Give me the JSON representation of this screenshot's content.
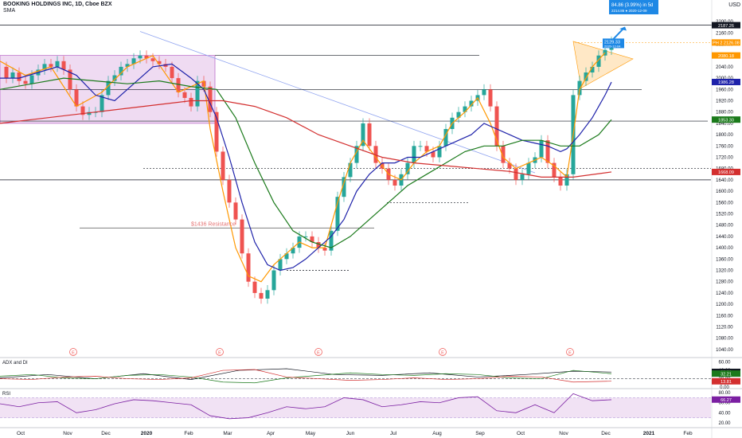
{
  "header": {
    "title": "BOOKING HOLDINGS INC, 1D, Cboe BZX",
    "indicator": "SMA",
    "currency": "USD"
  },
  "chart_data": [
    {
      "type": "line",
      "title": "BOOKING HOLDINGS INC, 1D, Cboe BZX",
      "y_axis_ticks": [
        1040,
        1080,
        1120,
        1160,
        1200,
        1240,
        1280,
        1320,
        1360,
        1400,
        1440,
        1480,
        1520,
        1560,
        1600,
        1640,
        1680,
        1720,
        1760,
        1800,
        1840,
        1880,
        1920,
        1960,
        2000,
        2040,
        2080,
        2120,
        2160,
        2200
      ],
      "ylim": [
        1020,
        2220
      ],
      "x_axis_labels": [
        "Oct",
        "Nov",
        "Dec",
        "2020",
        "Feb",
        "Mar",
        "Apr",
        "May",
        "Jun",
        "Jul",
        "Aug",
        "Sep",
        "Oct",
        "Nov",
        "Dec",
        "2021",
        "Feb"
      ],
      "price_badges": [
        {
          "label": "2187.26",
          "value": 2187.26,
          "color": "#131722"
        },
        {
          "label": "PH 2 2126.08",
          "value": 2126.08,
          "color": "#ff9800"
        },
        {
          "label": "2080.18",
          "value": 2080.18,
          "color": "#ff9800"
        },
        {
          "label": "1986.28",
          "value": 1986.28,
          "color": "#1e22aa"
        },
        {
          "label": "1853.30",
          "value": 1853.3,
          "color": "#1b7a1b"
        },
        {
          "label": "1668.09",
          "value": 1668.09,
          "color": "#d32f2f"
        }
      ],
      "annotations": {
        "resistance_label": "$1436 Resistance",
        "projection_box_line1": "84.86 (3.99%) in 5d",
        "projection_box_line2": "2214.86 ● 2020-12-09",
        "target_box_line1": "2129.33",
        "target_box_line2": "2020-12-04",
        "earnings_marker": "E"
      },
      "horizontal_levels": [
        2187.26,
        2080,
        1960,
        1848,
        1680,
        1640,
        1560,
        1470,
        1320
      ],
      "series": [
        {
          "name": "price",
          "color": "#2e7d32",
          "x": [
            0,
            8,
            16,
            24,
            32,
            40,
            48,
            56,
            64,
            72,
            80,
            88,
            96,
            104,
            112,
            120,
            128,
            136,
            144,
            152,
            160,
            168,
            176,
            184,
            192,
            200,
            208,
            216,
            224,
            232,
            240,
            248,
            256,
            264,
            272,
            280,
            288,
            296,
            304,
            312,
            320,
            328,
            336,
            344,
            352,
            360,
            368,
            376,
            384,
            392,
            400,
            408,
            416,
            424,
            432,
            440,
            448,
            456,
            464,
            472,
            480,
            488,
            496,
            504,
            512,
            520,
            528,
            536,
            544,
            552,
            560,
            568,
            576,
            584,
            592,
            600,
            608,
            616,
            624,
            632,
            640,
            648,
            656,
            664,
            672,
            680,
            688,
            696,
            704,
            712,
            720,
            728,
            736,
            744,
            752,
            760,
            768
          ],
          "values": [
            2040,
            2000,
            2020,
            1990,
            1980,
            2010,
            2030,
            2050,
            2040,
            2060,
            2030,
            1960,
            1900,
            1870,
            1880,
            1880,
            1940,
            1990,
            2010,
            2040,
            2050,
            2070,
            2080,
            2070,
            2060,
            2050,
            2040,
            2000,
            1950,
            1930,
            1900,
            1990,
            1970,
            1880,
            1740,
            1640,
            1560,
            1500,
            1380,
            1280,
            1240,
            1220,
            1250,
            1320,
            1360,
            1380,
            1400,
            1440,
            1440,
            1420,
            1400,
            1390,
            1460,
            1580,
            1650,
            1700,
            1760,
            1840,
            1760,
            1700,
            1680,
            1640,
            1620,
            1660,
            1700,
            1760,
            1760,
            1740,
            1720,
            1760,
            1820,
            1860,
            1880,
            1900,
            1920,
            1940,
            1960,
            1900,
            1760,
            1700,
            1680,
            1640,
            1660,
            1700,
            1720,
            1780,
            1700,
            1650,
            1620,
            1660,
            1940,
            1990,
            2020,
            2040,
            2080,
            2100,
            2129
          ]
        },
        {
          "name": "sma-fast",
          "color": "#ff9800",
          "x": [
            0,
            32,
            64,
            96,
            128,
            160,
            192,
            224,
            256,
            264,
            280,
            296,
            312,
            328,
            344,
            360,
            376,
            392,
            408,
            424,
            440,
            456,
            472,
            488,
            504,
            520,
            536,
            552,
            568,
            584,
            600,
            616,
            632,
            648,
            664,
            680,
            696,
            712,
            720,
            728,
            744,
            760
          ],
          "values": [
            2060,
            2010,
            2040,
            1900,
            1950,
            2040,
            2080,
            1950,
            1990,
            1820,
            1600,
            1400,
            1300,
            1280,
            1340,
            1380,
            1420,
            1400,
            1400,
            1560,
            1700,
            1780,
            1720,
            1660,
            1640,
            1700,
            1740,
            1760,
            1840,
            1880,
            1930,
            1840,
            1720,
            1680,
            1700,
            1720,
            1690,
            1650,
            1800,
            1960,
            2040,
            2090
          ]
        },
        {
          "name": "sma-20",
          "color": "#1e22aa",
          "x": [
            0,
            24,
            48,
            72,
            96,
            120,
            144,
            168,
            192,
            216,
            240,
            256,
            272,
            288,
            304,
            320,
            336,
            352,
            368,
            384,
            400,
            416,
            432,
            448,
            464,
            480,
            496,
            512,
            528,
            544,
            560,
            576,
            592,
            608,
            624,
            640,
            656,
            672,
            688,
            704,
            712,
            728,
            744,
            760,
            768
          ],
          "values": [
            2000,
            2000,
            2020,
            2040,
            2010,
            1940,
            1920,
            1980,
            2040,
            2050,
            2000,
            1960,
            1860,
            1720,
            1560,
            1420,
            1340,
            1320,
            1330,
            1360,
            1400,
            1440,
            1500,
            1600,
            1660,
            1700,
            1700,
            1720,
            1720,
            1740,
            1760,
            1780,
            1800,
            1840,
            1820,
            1800,
            1780,
            1770,
            1760,
            1740,
            1750,
            1800,
            1860,
            1940,
            1986
          ]
        },
        {
          "name": "sma-50",
          "color": "#1b7a1b",
          "x": [
            0,
            40,
            80,
            120,
            160,
            200,
            240,
            272,
            296,
            320,
            344,
            368,
            392,
            416,
            440,
            464,
            488,
            512,
            536,
            560,
            584,
            608,
            632,
            656,
            680,
            704,
            728,
            752,
            768
          ],
          "values": [
            1960,
            1980,
            2000,
            1990,
            1980,
            1990,
            1970,
            1960,
            1860,
            1700,
            1560,
            1460,
            1420,
            1400,
            1440,
            1500,
            1560,
            1620,
            1660,
            1700,
            1740,
            1760,
            1760,
            1780,
            1780,
            1760,
            1760,
            1800,
            1853
          ]
        },
        {
          "name": "sma-200",
          "color": "#d32f2f",
          "x": [
            0,
            60,
            120,
            180,
            240,
            280,
            320,
            360,
            400,
            440,
            480,
            520,
            560,
            600,
            640,
            680,
            720,
            768
          ],
          "values": [
            1840,
            1860,
            1880,
            1900,
            1920,
            1920,
            1900,
            1860,
            1800,
            1760,
            1720,
            1700,
            1690,
            1680,
            1670,
            1650,
            1650,
            1668
          ]
        }
      ]
    },
    {
      "type": "line",
      "title": "ADX and DI",
      "ylim": [
        0,
        65
      ],
      "y_axis_ticks": [
        0,
        20,
        40,
        60
      ],
      "badges": [
        {
          "label": "36.36",
          "value": 36.36,
          "color": "#131722"
        },
        {
          "label": "32.21",
          "value": 32.21,
          "color": "#1b7a1b"
        },
        {
          "label": "13.81",
          "value": 13.81,
          "color": "#d32f2f"
        }
      ],
      "reference_level": 20,
      "series": [
        {
          "name": "adx",
          "color": "#131722",
          "x": [
            0,
            60,
            120,
            180,
            240,
            300,
            360,
            420,
            480,
            540,
            600,
            660,
            720,
            768
          ],
          "values": [
            22,
            30,
            20,
            32,
            18,
            40,
            44,
            30,
            28,
            34,
            24,
            30,
            38,
            36
          ]
        },
        {
          "name": "di-plus",
          "color": "#1b7a1b",
          "x": [
            0,
            40,
            80,
            120,
            160,
            200,
            240,
            280,
            320,
            360,
            400,
            440,
            480,
            520,
            560,
            600,
            640,
            680,
            720,
            768
          ],
          "values": [
            26,
            30,
            22,
            20,
            28,
            30,
            24,
            12,
            10,
            22,
            28,
            34,
            30,
            28,
            32,
            30,
            22,
            20,
            40,
            32
          ]
        },
        {
          "name": "di-minus",
          "color": "#d32f2f",
          "x": [
            0,
            40,
            80,
            120,
            160,
            200,
            240,
            280,
            320,
            360,
            400,
            440,
            480,
            520,
            560,
            600,
            640,
            680,
            720,
            768
          ],
          "values": [
            20,
            18,
            24,
            26,
            20,
            18,
            22,
            40,
            42,
            24,
            20,
            16,
            18,
            22,
            18,
            20,
            26,
            24,
            12,
            14
          ]
        }
      ]
    },
    {
      "type": "line",
      "title": "RSI",
      "ylim": [
        15,
        85
      ],
      "y_axis_ticks": [
        20,
        40,
        60,
        80
      ],
      "badges": [
        {
          "label": "66.27",
          "value": 66.27,
          "color": "#7b1fa2"
        }
      ],
      "bands": [
        70,
        30
      ],
      "series": [
        {
          "name": "rsi",
          "color": "#7b1fa2",
          "x": [
            0,
            24,
            48,
            72,
            96,
            120,
            144,
            168,
            192,
            216,
            240,
            264,
            288,
            312,
            336,
            360,
            384,
            408,
            432,
            456,
            480,
            504,
            528,
            552,
            576,
            600,
            624,
            648,
            672,
            696,
            720,
            744,
            768
          ],
          "values": [
            58,
            52,
            60,
            62,
            40,
            46,
            58,
            66,
            64,
            60,
            56,
            34,
            28,
            30,
            40,
            52,
            48,
            52,
            70,
            66,
            52,
            56,
            62,
            60,
            70,
            72,
            44,
            40,
            56,
            40,
            78,
            64,
            66
          ]
        }
      ]
    }
  ]
}
